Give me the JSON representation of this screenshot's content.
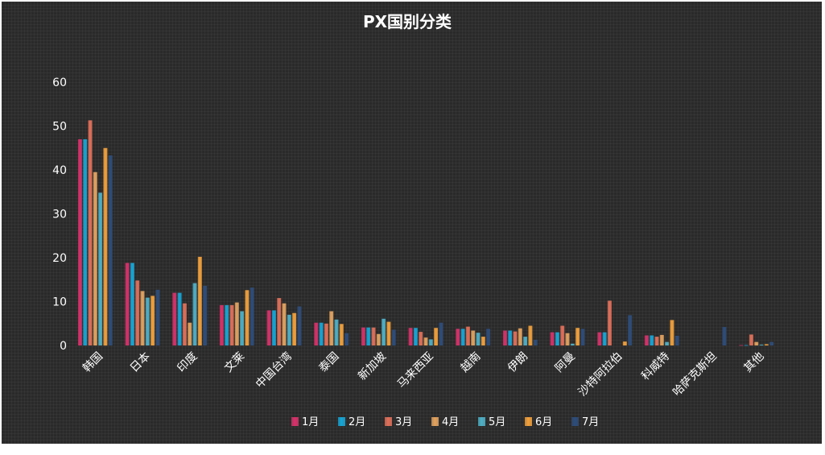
{
  "chart_data": {
    "type": "bar",
    "title": "PX国别分类",
    "xlabel": "",
    "ylabel": "",
    "ylim": [
      0,
      60
    ],
    "yticks": [
      0,
      10,
      20,
      30,
      40,
      50,
      60
    ],
    "legend_position": "bottom",
    "categories": [
      "韩国",
      "日本",
      "印度",
      "文莱",
      "中国台湾",
      "泰国",
      "新加坡",
      "马来西亚",
      "越南",
      "伊朗",
      "阿曼",
      "沙特阿拉伯",
      "科威特",
      "哈萨克斯坦",
      "其他"
    ],
    "series": [
      {
        "name": "1月",
        "color": "#d6326a",
        "values": [
          47,
          18.8,
          12,
          9.2,
          8,
          5.2,
          4.1,
          4,
          3.8,
          3.4,
          3,
          3,
          2.3,
          0,
          0.1
        ]
      },
      {
        "name": "2月",
        "color": "#17a6d6",
        "values": [
          47,
          18.8,
          12,
          9.2,
          8,
          5.2,
          4.1,
          4,
          3.8,
          3.4,
          3,
          3,
          2.3,
          0,
          0.1
        ]
      },
      {
        "name": "3月",
        "color": "#e0705a",
        "values": [
          51.3,
          14.8,
          9.6,
          9.2,
          10.8,
          5,
          4.1,
          3.1,
          4.3,
          3.2,
          4.5,
          10.2,
          2,
          0,
          2.5
        ]
      },
      {
        "name": "4月",
        "color": "#e3a35f",
        "values": [
          39.5,
          12.4,
          5.2,
          9.8,
          9.6,
          7.8,
          2.6,
          1.8,
          3.4,
          3.9,
          2.8,
          0,
          2.4,
          0,
          0.8
        ]
      },
      {
        "name": "5月",
        "color": "#4fb0c6",
        "values": [
          34.8,
          10.9,
          14.2,
          7.8,
          7,
          5.9,
          6.1,
          1.4,
          2.9,
          2,
          0.4,
          0,
          0.8,
          0,
          0.2
        ]
      },
      {
        "name": "6月",
        "color": "#f2a13c",
        "values": [
          45,
          11.3,
          20.2,
          12.6,
          7.4,
          4.9,
          5.4,
          4,
          2,
          4.5,
          4,
          0.9,
          5.8,
          0,
          0.3
        ]
      },
      {
        "name": "7月",
        "color": "#2e4d7a",
        "values": [
          43.3,
          12.7,
          13.6,
          13.2,
          8.9,
          2.8,
          3.6,
          5.2,
          3.8,
          1.3,
          3.8,
          6.9,
          2.2,
          4.2,
          0.8
        ]
      }
    ]
  }
}
